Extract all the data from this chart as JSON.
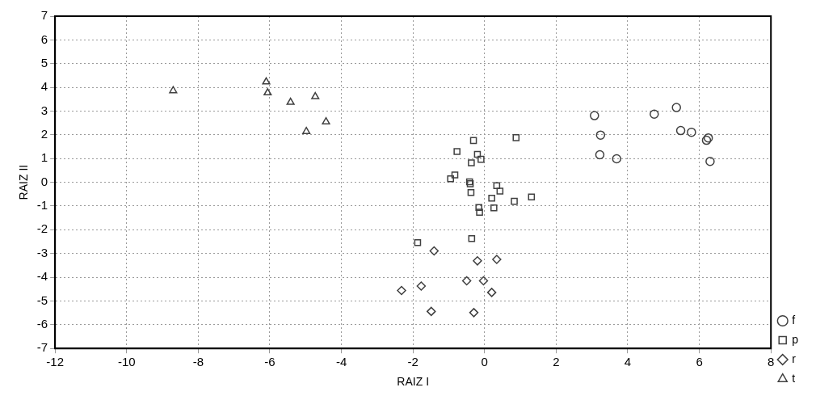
{
  "chart_data": {
    "type": "scatter",
    "xlabel": "RAIZ I",
    "ylabel": "RAIZ II",
    "xlim": [
      -12,
      8
    ],
    "xticks": [
      -12,
      -10,
      -8,
      -6,
      -4,
      -2,
      0,
      2,
      4,
      6,
      8
    ],
    "ylim": [
      -7,
      7
    ],
    "yticks": [
      -7,
      -6,
      -5,
      -4,
      -3,
      -2,
      -1,
      0,
      1,
      2,
      3,
      4,
      5,
      6,
      7
    ],
    "grid": true,
    "legend": "bottom right",
    "series": [
      {
        "name": "f",
        "color": "#404040",
        "marker": "circle",
        "x": [
          3.07,
          4.74,
          5.36,
          3.24,
          5.48,
          5.78,
          6.25,
          6.2,
          3.22,
          3.69,
          6.3
        ],
        "values": [
          2.81,
          2.87,
          3.15,
          1.99,
          2.18,
          2.11,
          1.87,
          1.77,
          1.16,
          0.99,
          0.88
        ]
      },
      {
        "name": "p",
        "color": "#404040",
        "marker": "square",
        "x": [
          -0.31,
          0.88,
          -0.77,
          -0.2,
          -0.1,
          -0.37,
          -0.83,
          -0.95,
          -0.42,
          -0.4,
          -0.38,
          0.34,
          0.43,
          0.2,
          0.83,
          1.31,
          -0.16,
          -0.14,
          0.26,
          -1.87,
          -0.36
        ],
        "values": [
          1.76,
          1.88,
          1.3,
          1.18,
          0.97,
          0.82,
          0.31,
          0.15,
          0.02,
          -0.06,
          -0.43,
          -0.14,
          -0.37,
          -0.67,
          -0.8,
          -0.62,
          -1.06,
          -1.26,
          -1.08,
          -2.54,
          -2.37
        ]
      },
      {
        "name": "r",
        "color": "#404040",
        "marker": "diamond",
        "x": [
          -1.41,
          -0.2,
          0.34,
          -0.5,
          -0.03,
          0.2,
          -1.77,
          -2.32,
          -1.49,
          -0.3
        ],
        "values": [
          -2.89,
          -3.31,
          -3.25,
          -4.15,
          -4.15,
          -4.64,
          -4.37,
          -4.56,
          -5.44,
          -5.49
        ]
      },
      {
        "name": "t",
        "color": "#404040",
        "marker": "triangle",
        "x": [
          -8.7,
          -6.1,
          -6.06,
          -5.42,
          -4.73,
          -4.98,
          -4.43
        ],
        "values": [
          3.86,
          4.23,
          3.77,
          3.37,
          3.61,
          2.14,
          2.55
        ]
      }
    ]
  }
}
